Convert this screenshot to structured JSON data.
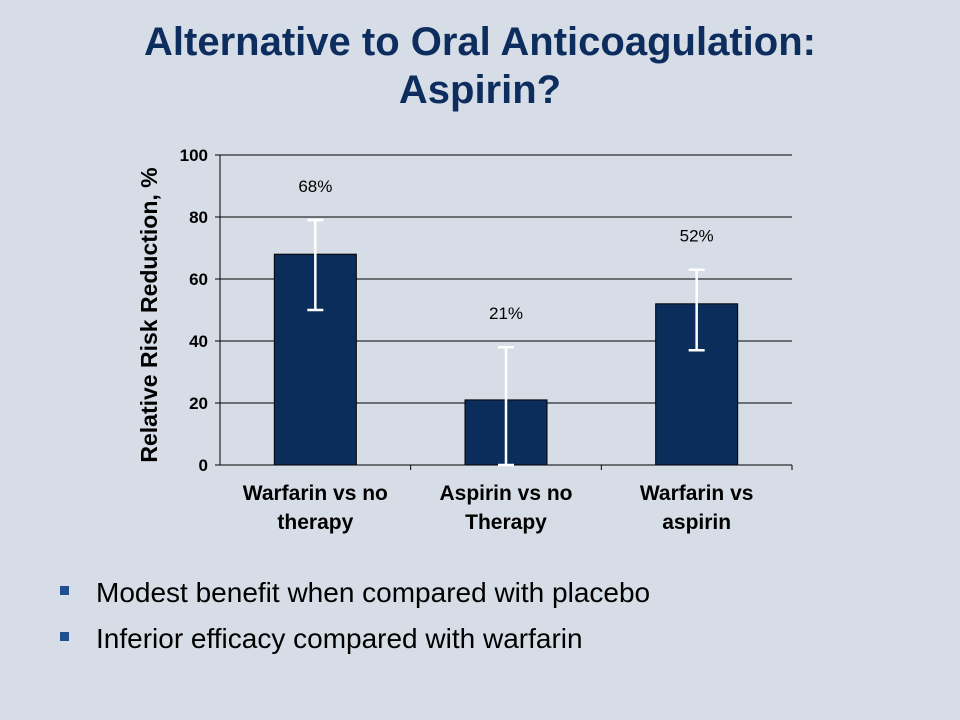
{
  "slide": {
    "title_line1": "Alternative to Oral Anticoagulation:",
    "title_line2": "Aspirin?",
    "bullets": [
      "Modest benefit when compared with placebo",
      "Inferior efficacy compared with warfarin"
    ],
    "bullet_icon": "square-bullet-icon",
    "colors": {
      "background": "#d6dde6",
      "title": "#0d2d5e",
      "bar": "#0b2d5c",
      "bullet": "#1f4f8f"
    }
  },
  "chart_data": {
    "type": "bar",
    "title": "",
    "xlabel": "",
    "ylabel": "Relative Risk Reduction, %",
    "ylim": [
      0,
      100
    ],
    "yticks": [
      0,
      20,
      40,
      60,
      80,
      100
    ],
    "grid": true,
    "categories": [
      [
        "Warfarin vs no",
        "therapy"
      ],
      [
        "Aspirin vs no",
        "Therapy"
      ],
      [
        "Warfarin vs",
        "aspirin"
      ]
    ],
    "values": [
      68,
      21,
      52
    ],
    "data_labels": [
      "68%",
      "21%",
      "52%"
    ],
    "error_bars": [
      {
        "low": 50,
        "high": 79
      },
      {
        "low": 0,
        "high": 38
      },
      {
        "low": 37,
        "high": 63
      }
    ]
  }
}
